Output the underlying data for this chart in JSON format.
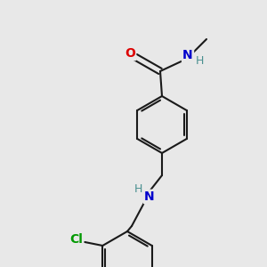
{
  "bg_color": "#e8e8e8",
  "bond_color": "#1a1a1a",
  "atom_colors": {
    "O": "#dd0000",
    "N": "#0000cc",
    "Cl": "#009900",
    "C": "#1a1a1a",
    "H": "#4a9090"
  },
  "figsize": [
    3.0,
    3.0
  ],
  "dpi": 100,
  "lw": 1.5,
  "lw_double": 1.5
}
